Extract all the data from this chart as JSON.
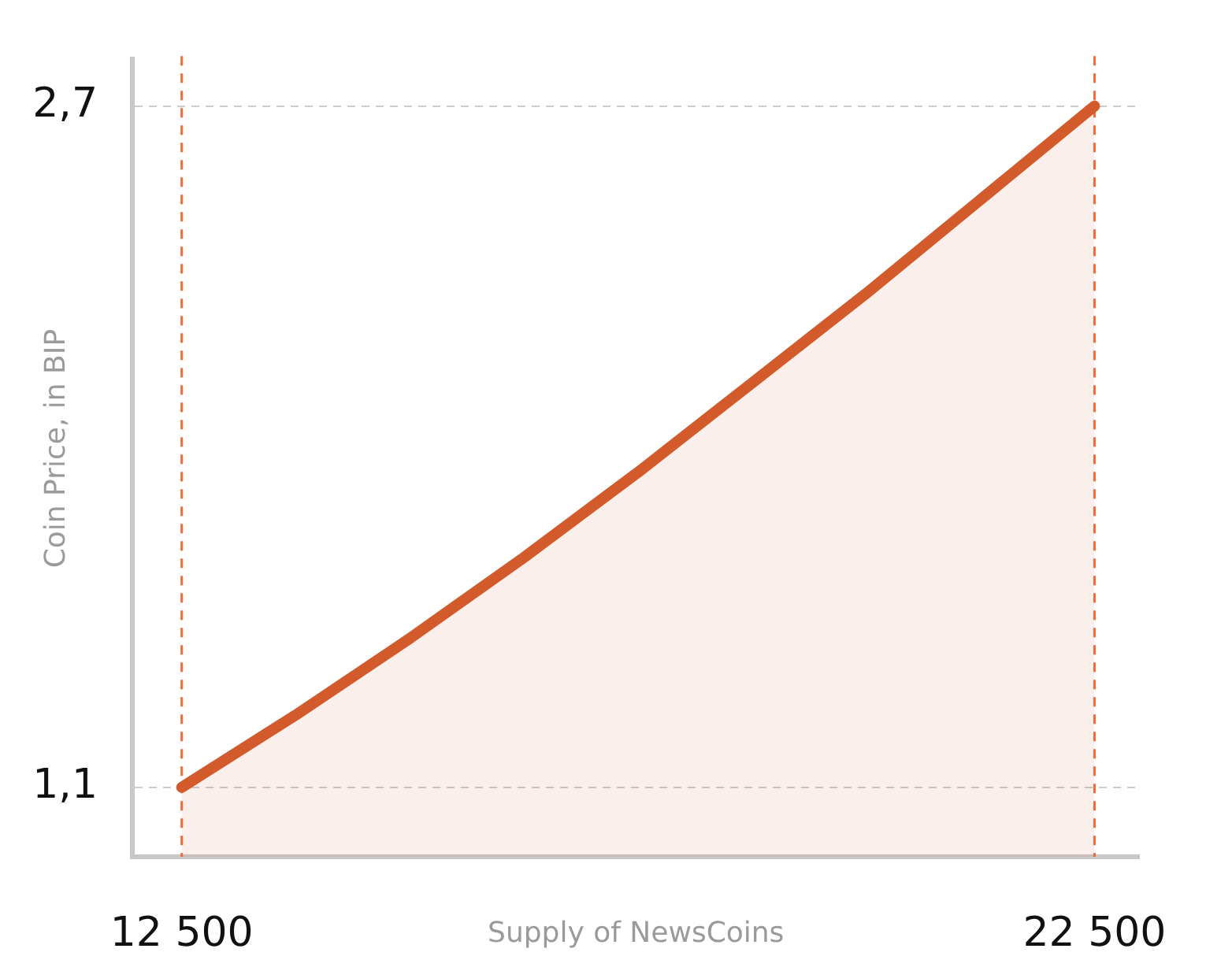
{
  "chart_data": {
    "type": "area",
    "xlabel": "Supply of NewsCoins",
    "ylabel": "Coin Price, in BIP",
    "x": [
      12500,
      13750,
      15000,
      16250,
      17500,
      18750,
      20000,
      21250,
      22500
    ],
    "series": [
      {
        "color": "#d35a2a",
        "values": [
          1.1,
          1.27,
          1.45,
          1.64,
          1.84,
          2.05,
          2.26,
          2.48,
          2.7
        ]
      }
    ],
    "xlim": [
      11959,
      22992
    ],
    "xticks": [
      {
        "value": 12500,
        "label": "12 500"
      },
      {
        "value": 22500,
        "label": "22 500"
      }
    ],
    "ylim": [
      0.937,
      2.81
    ],
    "yticks": [
      {
        "value": 1.1,
        "label": "1,1"
      },
      {
        "value": 2.7,
        "label": "2,7"
      }
    ],
    "grid": "y",
    "legend": false,
    "marker": "none",
    "line_style": "solid",
    "ref_lines": [
      {
        "axis": "x",
        "value": 12500,
        "color": "#f06a3a",
        "line_style": "dashed"
      },
      {
        "axis": "x",
        "value": 22500,
        "color": "#f06a3a",
        "line_style": "dashed"
      }
    ]
  }
}
